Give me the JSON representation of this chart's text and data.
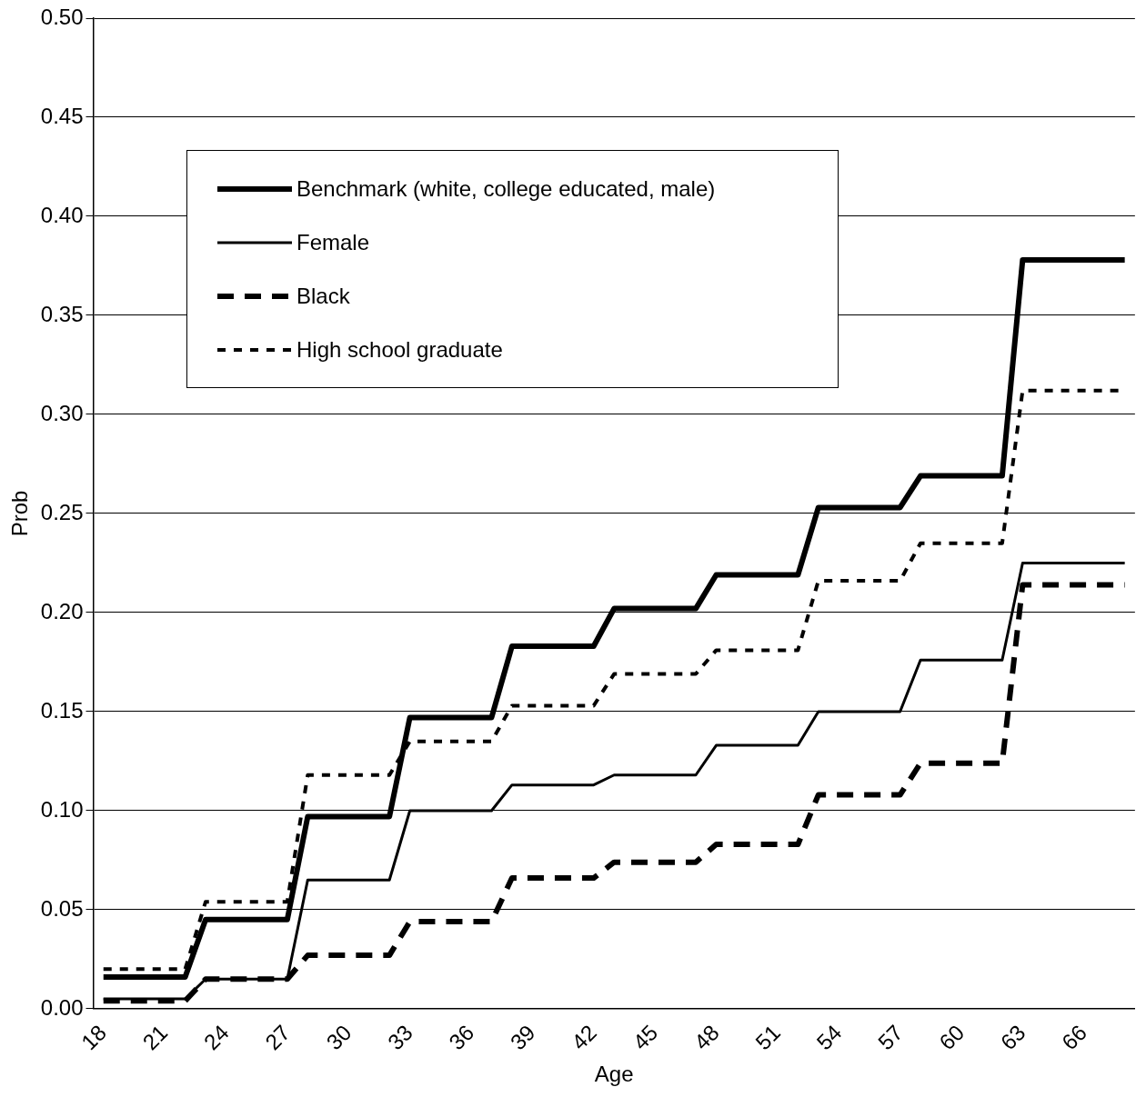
{
  "chart_data": {
    "type": "line",
    "xlabel": "Age",
    "ylabel": "Prob",
    "categories": [
      "18",
      null,
      null,
      "21",
      null,
      null,
      "24",
      null,
      null,
      "27",
      null,
      null,
      "30",
      null,
      null,
      "33",
      null,
      null,
      "36",
      null,
      null,
      "39",
      null,
      null,
      "42",
      null,
      null,
      "45",
      null,
      null,
      "48",
      null,
      null,
      "51",
      null,
      null,
      "54",
      null,
      null,
      "57",
      null,
      null,
      "60",
      null,
      null,
      "63",
      null,
      null,
      "66",
      null,
      null
    ],
    "series": [
      {
        "name": "Benchmark (white, college educated, male)",
        "color": "#000000",
        "line_style": "solid",
        "values": [
          0.016,
          0.016,
          0.016,
          0.016,
          0.016,
          0.045,
          0.045,
          0.045,
          0.045,
          0.045,
          0.097,
          0.097,
          0.097,
          0.097,
          0.097,
          0.147,
          0.147,
          0.147,
          0.147,
          0.147,
          0.183,
          0.183,
          0.183,
          0.183,
          0.183,
          0.202,
          0.202,
          0.202,
          0.202,
          0.202,
          0.219,
          0.219,
          0.219,
          0.219,
          0.219,
          0.253,
          0.253,
          0.253,
          0.253,
          0.253,
          0.269,
          0.269,
          0.269,
          0.269,
          0.269,
          0.378,
          0.378,
          0.378,
          0.378,
          0.378,
          0.378
        ]
      },
      {
        "name": "Female",
        "color": "#000000",
        "line_style": "solid",
        "values": [
          0.005,
          0.005,
          0.005,
          0.005,
          0.005,
          0.015,
          0.015,
          0.015,
          0.015,
          0.015,
          0.065,
          0.065,
          0.065,
          0.065,
          0.065,
          0.1,
          0.1,
          0.1,
          0.1,
          0.1,
          0.113,
          0.113,
          0.113,
          0.113,
          0.113,
          0.118,
          0.118,
          0.118,
          0.118,
          0.118,
          0.133,
          0.133,
          0.133,
          0.133,
          0.133,
          0.15,
          0.15,
          0.15,
          0.15,
          0.15,
          0.176,
          0.176,
          0.176,
          0.176,
          0.176,
          0.225,
          0.225,
          0.225,
          0.225,
          0.225,
          0.225
        ]
      },
      {
        "name": "Black",
        "color": "#000000",
        "line_style": "dashed",
        "values": [
          0.004,
          0.004,
          0.004,
          0.004,
          0.004,
          0.015,
          0.015,
          0.015,
          0.015,
          0.015,
          0.027,
          0.027,
          0.027,
          0.027,
          0.027,
          0.044,
          0.044,
          0.044,
          0.044,
          0.044,
          0.066,
          0.066,
          0.066,
          0.066,
          0.066,
          0.074,
          0.074,
          0.074,
          0.074,
          0.074,
          0.083,
          0.083,
          0.083,
          0.083,
          0.083,
          0.108,
          0.108,
          0.108,
          0.108,
          0.108,
          0.124,
          0.124,
          0.124,
          0.124,
          0.124,
          0.214,
          0.214,
          0.214,
          0.214,
          0.214,
          0.214
        ]
      },
      {
        "name": "High school graduate",
        "color": "#000000",
        "line_style": "dotted",
        "values": [
          0.02,
          0.02,
          0.02,
          0.02,
          0.02,
          0.054,
          0.054,
          0.054,
          0.054,
          0.054,
          0.118,
          0.118,
          0.118,
          0.118,
          0.118,
          0.135,
          0.135,
          0.135,
          0.135,
          0.135,
          0.153,
          0.153,
          0.153,
          0.153,
          0.153,
          0.169,
          0.169,
          0.169,
          0.169,
          0.169,
          0.181,
          0.181,
          0.181,
          0.181,
          0.181,
          0.216,
          0.216,
          0.216,
          0.216,
          0.216,
          0.235,
          0.235,
          0.235,
          0.235,
          0.235,
          0.312,
          0.312,
          0.312,
          0.312,
          0.312,
          0.312
        ]
      }
    ],
    "ylim": [
      0,
      0.5
    ],
    "yticks": [
      {
        "value": 0,
        "label": "0.00"
      },
      {
        "value": 0.05,
        "label": "0.05"
      },
      {
        "value": 0.1,
        "label": "0.10"
      },
      {
        "value": 0.15,
        "label": "0.15"
      },
      {
        "value": 0.2,
        "label": "0.20"
      },
      {
        "value": 0.25,
        "label": "0.25"
      },
      {
        "value": 0.3,
        "label": "0.30"
      },
      {
        "value": 0.35,
        "label": "0.35"
      },
      {
        "value": 0.4,
        "label": "0.40"
      },
      {
        "value": 0.45,
        "label": "0.45"
      },
      {
        "value": 0.5,
        "label": "0.50"
      }
    ],
    "grid": "y",
    "legend": "top left",
    "marker": "none"
  }
}
